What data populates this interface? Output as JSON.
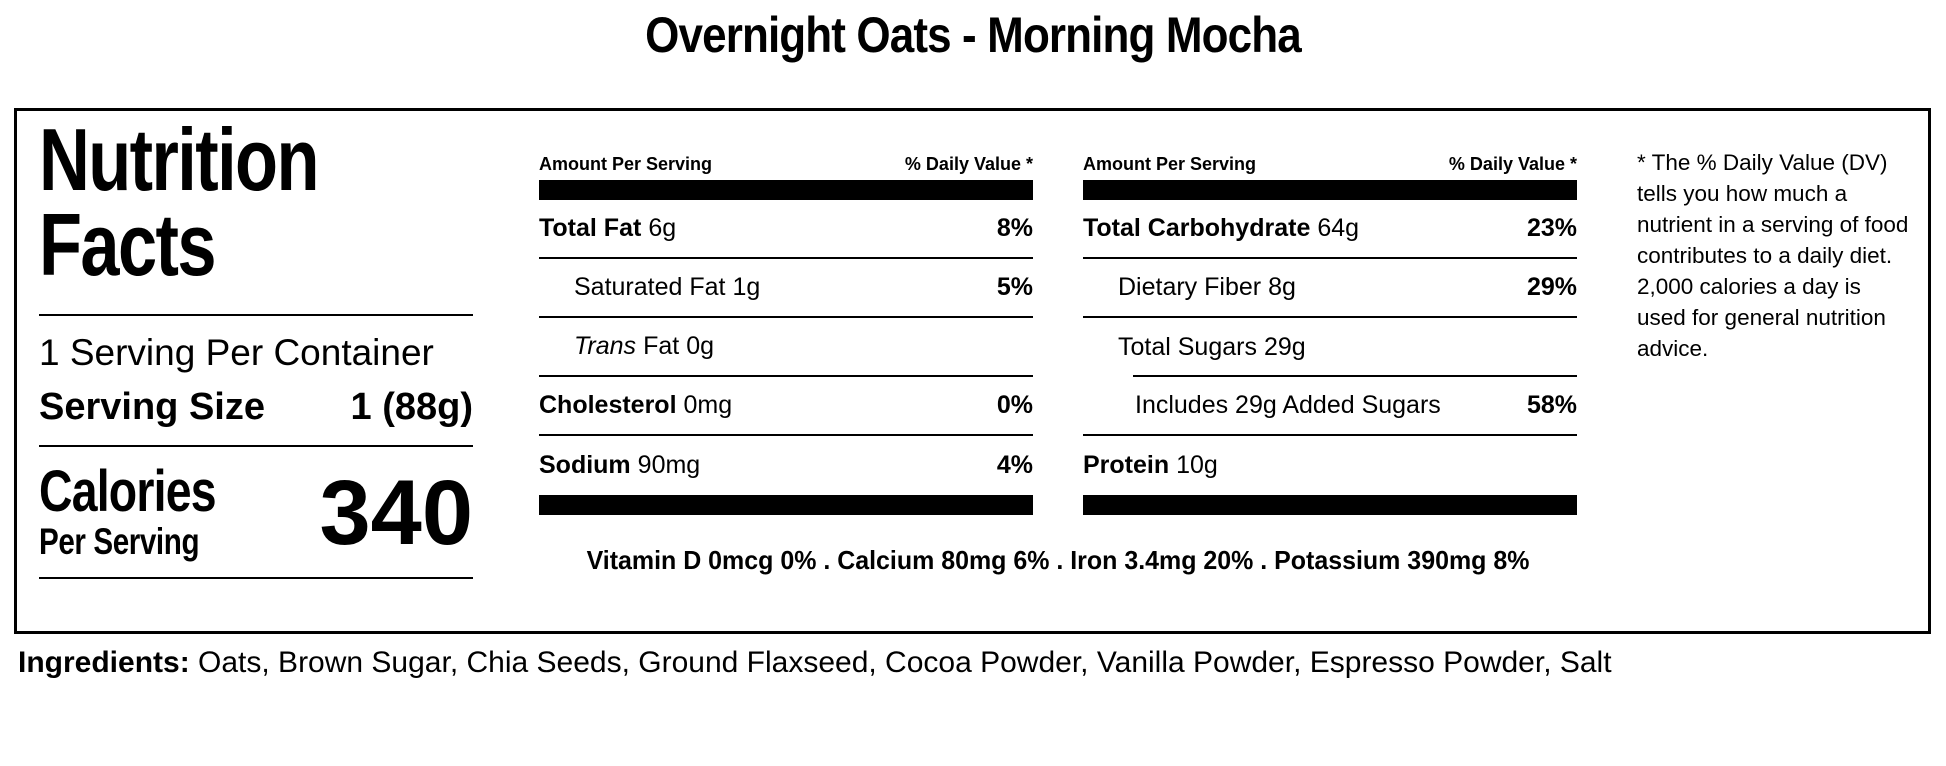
{
  "colors": {
    "text": "#000000",
    "background": "#ffffff",
    "bar": "#000000"
  },
  "title": "Overnight Oats - Morning Mocha",
  "label": {
    "heading_line1": "Nutrition",
    "heading_line2": "Facts",
    "servings_per_container": "1 Serving Per Container",
    "serving_size_label": "Serving Size",
    "serving_size_value": "1 (88g)",
    "calories_label": "Calories",
    "calories_sublabel": "Per Serving",
    "calories_value": "340",
    "columns": [
      {
        "header_left": "Amount Per Serving",
        "header_right": "% Daily Value *",
        "rows": [
          {
            "name": "Total Fat",
            "amount": "6g",
            "dv": "8%"
          },
          {
            "name": "Saturated Fat",
            "amount": "1g",
            "dv": "5%"
          },
          {
            "name_italic": "Trans",
            "name_rest": "Fat",
            "amount": "0g",
            "dv": ""
          },
          {
            "name": "Cholesterol",
            "amount": "0mg",
            "dv": "0%"
          },
          {
            "name": "Sodium",
            "amount": "90mg",
            "dv": "4%"
          }
        ]
      },
      {
        "header_left": "Amount Per Serving",
        "header_right": "% Daily Value *",
        "rows": [
          {
            "name": "Total Carbohydrate",
            "amount": "64g",
            "dv": "23%"
          },
          {
            "name": "Dietary Fiber",
            "amount": "8g",
            "dv": "29%"
          },
          {
            "name": "Total Sugars",
            "amount": "29g",
            "dv": ""
          },
          {
            "name": "Includes 29g Added Sugars",
            "amount": "",
            "dv": "58%"
          },
          {
            "name": "Protein",
            "amount": "10g",
            "dv": ""
          }
        ]
      }
    ],
    "micronutrients": "Vitamin D 0mcg 0% . Calcium 80mg 6% . Iron 3.4mg 20% . Potassium 390mg 8%",
    "footnote": "* The % Daily Value (DV) tells you how much a nutrient in a serving of food contributes to a daily diet. 2,000 calories a day is used for general nutrition advice."
  },
  "ingredients": {
    "label": "Ingredients:",
    "list": "Oats, Brown Sugar, Chia Seeds, Ground Flaxseed, Cocoa Powder, Vanilla Powder, Espresso Powder, Salt"
  }
}
